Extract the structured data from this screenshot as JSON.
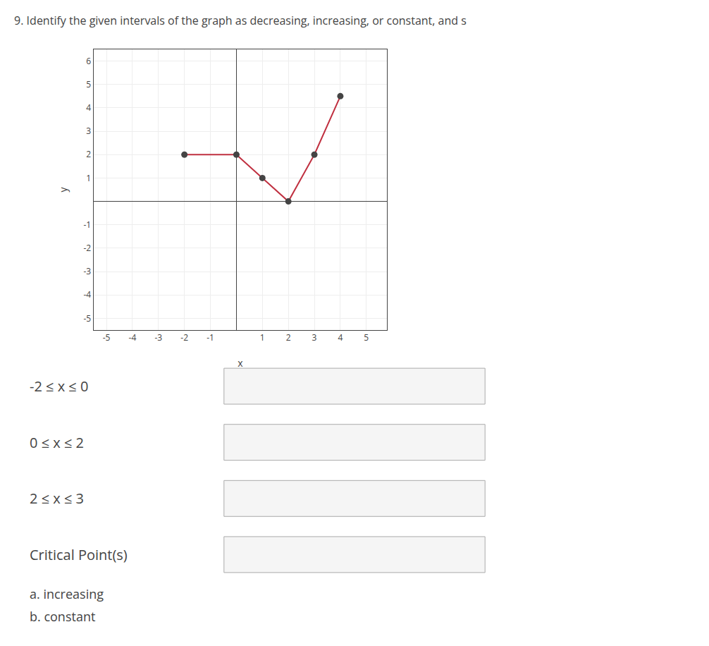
{
  "chart_data": {
    "type": "line",
    "title": "9. Identify the given intervals of the graph as decreasing, increasing, or constant, and s",
    "x_label": "x",
    "y_label": "y",
    "x": [
      -2,
      0,
      1,
      2,
      3,
      4
    ],
    "series": [
      {
        "type": "line",
        "color": "#c03040",
        "values": [
          2,
          2,
          1,
          0,
          2,
          4.5
        ]
      },
      {
        "type": "scatter",
        "color": "#444444",
        "values": [
          2,
          2,
          1,
          0,
          2,
          4.5
        ]
      }
    ],
    "xlim": [
      -5.5,
      5.8
    ],
    "ylim": [
      -5.5,
      6.5
    ],
    "xticks": [
      -5,
      -4,
      -3,
      -2,
      -1,
      1,
      2,
      3,
      4,
      5
    ],
    "yticks": [
      -5,
      -4,
      -3,
      -2,
      -1,
      1,
      2,
      3,
      4,
      5,
      6
    ],
    "grid": true,
    "annotations": [
      "-2 ≤ x ≤ 0",
      "0 ≤ x ≤ 2",
      "2 ≤ x ≤ 3",
      "Critical Point(s)",
      "a. increasing",
      "b. constant"
    ]
  }
}
